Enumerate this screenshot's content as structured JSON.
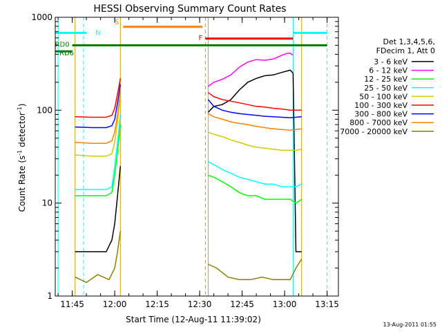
{
  "chart_data": {
    "type": "line",
    "title": "HESSI Observing Summary Count Rates",
    "xlabel": "Start Time (12-Aug-11 11:39:02)",
    "ylabel_main": "Count Rate (s",
    "ylabel_sup1": "-1",
    "ylabel_mid": " detector",
    "ylabel_sup2": "-1",
    "ylabel_end": ")",
    "y_log": true,
    "ylim": [
      1,
      1000
    ],
    "y_ticks": [
      {
        "value": 1,
        "label": "1"
      },
      {
        "value": 10,
        "label": "10"
      },
      {
        "value": 100,
        "label": "100"
      },
      {
        "value": 1000,
        "label": "1000"
      }
    ],
    "xlim": [
      "11:39",
      "13:19"
    ],
    "x_ticks": [
      {
        "value": "11:45",
        "label": "11:45"
      },
      {
        "value": "12:00",
        "label": "12:00"
      },
      {
        "value": "12:15",
        "label": "12:15"
      },
      {
        "value": "12:30",
        "label": "12:30"
      },
      {
        "value": "12:45",
        "label": "12:45"
      },
      {
        "value": "13:00",
        "label": "13:00"
      },
      {
        "value": "13:15",
        "label": "13:15"
      }
    ],
    "legend": {
      "position": "right",
      "header1": "Det 1,3,4,5,6,",
      "header2": "FDecim 1, Att 0",
      "entries": [
        {
          "label": "3 - 6 keV",
          "color": "#000000"
        },
        {
          "label": "6 - 12 keV",
          "color": "#ff00ff"
        },
        {
          "label": "12 - 25 keV",
          "color": "#00ff00"
        },
        {
          "label": "25 - 50 keV",
          "color": "#00ffff"
        },
        {
          "label": "50 - 100 keV",
          "color": "#d4c800"
        },
        {
          "label": "100 - 300 keV",
          "color": "#ff0000"
        },
        {
          "label": "300 - 800 keV",
          "color": "#0000ff"
        },
        {
          "label": "800 - 7000 keV",
          "color": "#ff8000"
        },
        {
          "label": "7000 - 20000 keV",
          "color": "#8b7d00"
        }
      ]
    },
    "flags": [
      {
        "label": "N",
        "color": "#00ffff",
        "value": 680,
        "segments": [
          [
            "11:39",
            "11:50"
          ],
          [
            "13:03",
            "13:15"
          ]
        ]
      },
      {
        "label": "S",
        "color": "#ff8000",
        "value": 790,
        "segments": [
          [
            "12:03",
            "12:31"
          ]
        ]
      },
      {
        "label": "F",
        "color": "#ff0000",
        "value": 590,
        "segments": [
          [
            "12:32",
            "13:03"
          ]
        ]
      },
      {
        "label": "RD0",
        "color": "#008000",
        "value": 500,
        "segments": [
          [
            "11:45",
            "13:15"
          ]
        ]
      },
      {
        "label": "RD6",
        "color": "#008000",
        "value": 430,
        "segments": [
          [
            "11:39",
            "11:45"
          ]
        ]
      }
    ],
    "vlines": [
      {
        "time": "11:40",
        "color": "#00ffff",
        "style": "solid"
      },
      {
        "time": "11:49",
        "color": "#00ffff",
        "style": "dashed"
      },
      {
        "time": "13:03",
        "color": "#00ffff",
        "style": "solid"
      },
      {
        "time": "13:15",
        "color": "#00ffff",
        "style": "dashed"
      },
      {
        "time": "12:32",
        "color": "#ff8000",
        "style": "dashed"
      },
      {
        "time": "11:46",
        "color": "#d4a000",
        "style": "solid"
      },
      {
        "time": "12:02",
        "color": "#d4a000",
        "style": "solid"
      },
      {
        "time": "12:33",
        "color": "#d4a000",
        "style": "solid"
      },
      {
        "time": "13:06",
        "color": "#d4a000",
        "style": "solid"
      }
    ],
    "series": [
      {
        "name": "3 - 6 keV",
        "color": "#000000",
        "segments": [
          {
            "x": [
              "11:46",
              "11:52",
              "11:57",
              "11:59",
              "12:00",
              "12:01",
              "12:02"
            ],
            "y": [
              3,
              3,
              3,
              4,
              6,
              12,
              25
            ]
          },
          {
            "x": [
              "12:33",
              "12:35",
              "12:38",
              "12:41",
              "12:44",
              "12:47",
              "12:50",
              "12:53",
              "12:56",
              "12:59",
              "13:01",
              "13:02",
              "13:03",
              "13:04",
              "13:06"
            ],
            "y": [
              95,
              110,
              115,
              130,
              165,
              200,
              220,
              235,
              240,
              255,
              265,
              270,
              250,
              3,
              3
            ]
          }
        ]
      },
      {
        "name": "6 - 12 keV",
        "color": "#ff00ff",
        "segments": [
          {
            "x": [
              "12:33",
              "12:35",
              "12:38",
              "12:41",
              "12:44",
              "12:47",
              "12:50",
              "12:53",
              "12:56",
              "12:59",
              "13:01",
              "13:02",
              "13:03"
            ],
            "y": [
              180,
              200,
              215,
              240,
              290,
              330,
              350,
              345,
              355,
              390,
              410,
              410,
              390
            ]
          }
        ]
      },
      {
        "name": "12 - 25 keV",
        "color": "#00ff00",
        "segments": [
          {
            "x": [
              "11:46",
              "11:52",
              "11:57",
              "11:59",
              "12:00",
              "12:01",
              "12:02"
            ],
            "y": [
              12,
              12,
              12,
              13,
              20,
              35,
              70
            ]
          },
          {
            "x": [
              "12:33",
              "12:35",
              "12:38",
              "12:41",
              "12:44",
              "12:47",
              "12:50",
              "12:53",
              "12:56",
              "12:59",
              "13:02",
              "13:04",
              "13:06"
            ],
            "y": [
              20,
              19,
              17,
              15,
              13,
              12,
              12,
              11,
              11,
              11,
              11,
              10,
              11
            ]
          }
        ]
      },
      {
        "name": "25 - 50 keV",
        "color": "#00ffff",
        "segments": [
          {
            "x": [
              "11:46",
              "11:52",
              "11:57",
              "11:59",
              "12:00",
              "12:01",
              "12:02"
            ],
            "y": [
              14,
              14,
              14,
              15,
              25,
              45,
              90
            ]
          },
          {
            "x": [
              "12:33",
              "12:35",
              "12:38",
              "12:41",
              "12:44",
              "12:47",
              "12:50",
              "12:53",
              "12:56",
              "12:59",
              "13:02",
              "13:04",
              "13:06"
            ],
            "y": [
              28,
              26,
              23,
              21,
              19,
              18,
              17,
              16,
              16,
              15,
              15,
              15,
              16
            ]
          }
        ]
      },
      {
        "name": "50 - 100 keV",
        "color": "#d4c800",
        "segments": [
          {
            "x": [
              "11:46",
              "11:52",
              "11:57",
              "11:59",
              "12:00",
              "12:01",
              "12:02"
            ],
            "y": [
              33,
              32,
              32,
              34,
              45,
              75,
              150
            ]
          },
          {
            "x": [
              "12:33",
              "12:35",
              "12:38",
              "12:41",
              "12:44",
              "12:47",
              "12:50",
              "12:53",
              "12:56",
              "12:59",
              "13:02",
              "13:04",
              "13:06"
            ],
            "y": [
              58,
              55,
              52,
              48,
              45,
              42,
              40,
              39,
              38,
              37,
              37,
              37,
              38
            ]
          }
        ]
      },
      {
        "name": "100 - 300 keV",
        "color": "#ff0000",
        "segments": [
          {
            "x": [
              "11:46",
              "11:52",
              "11:57",
              "11:59",
              "12:00",
              "12:01",
              "12:02"
            ],
            "y": [
              85,
              84,
              84,
              88,
              105,
              150,
              220
            ]
          },
          {
            "x": [
              "12:33",
              "12:35",
              "12:38",
              "12:41",
              "12:44",
              "12:47",
              "12:50",
              "12:53",
              "12:56",
              "12:59",
              "13:02",
              "13:04",
              "13:06"
            ],
            "y": [
              155,
              140,
              130,
              125,
              120,
              115,
              110,
              108,
              105,
              103,
              100,
              100,
              100
            ]
          }
        ]
      },
      {
        "name": "300 - 800 keV",
        "color": "#0000ff",
        "segments": [
          {
            "x": [
              "11:46",
              "11:52",
              "11:57",
              "11:59",
              "12:00",
              "12:01",
              "12:02"
            ],
            "y": [
              66,
              65,
              65,
              68,
              80,
              120,
              190
            ]
          },
          {
            "x": [
              "12:33",
              "12:35",
              "12:38",
              "12:41",
              "12:44",
              "12:47",
              "12:50",
              "12:53",
              "12:56",
              "12:59",
              "13:02",
              "13:04",
              "13:06"
            ],
            "y": [
              130,
              110,
              100,
              95,
              92,
              90,
              88,
              86,
              85,
              84,
              83,
              84,
              85
            ]
          }
        ]
      },
      {
        "name": "800 - 7000 keV",
        "color": "#ff8000",
        "segments": [
          {
            "x": [
              "11:46",
              "11:52",
              "11:57",
              "11:59",
              "12:00",
              "12:01",
              "12:02"
            ],
            "y": [
              45,
              44,
              44,
              47,
              58,
              90,
              160
            ]
          },
          {
            "x": [
              "12:33",
              "12:35",
              "12:38",
              "12:41",
              "12:44",
              "12:47",
              "12:50",
              "12:53",
              "12:56",
              "12:59",
              "13:02",
              "13:04",
              "13:06"
            ],
            "y": [
              92,
              85,
              80,
              75,
              72,
              70,
              67,
              65,
              63,
              62,
              61,
              62,
              63
            ]
          }
        ]
      },
      {
        "name": "7000 - 20000 keV",
        "color": "#8b7d00",
        "segments": [
          {
            "x": [
              "11:46",
              "11:50",
              "11:54",
              "11:58",
              "12:00",
              "12:01",
              "12:02"
            ],
            "y": [
              1.6,
              1.4,
              1.7,
              1.5,
              2,
              3,
              5
            ]
          },
          {
            "x": [
              "12:33",
              "12:36",
              "12:40",
              "12:44",
              "12:48",
              "12:52",
              "12:56",
              "13:00",
              "13:02",
              "13:04",
              "13:06"
            ],
            "y": [
              2.2,
              2,
              1.6,
              1.5,
              1.5,
              1.6,
              1.5,
              1.5,
              1.5,
              2,
              2.5
            ]
          }
        ]
      }
    ],
    "timestamp": "13-Aug-2011 01:55"
  }
}
